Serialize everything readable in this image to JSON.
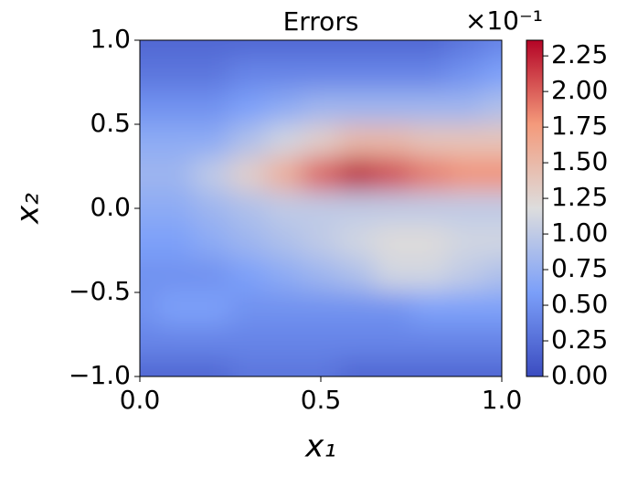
{
  "chart_data": {
    "type": "contour",
    "title": "Errors",
    "xlabel": "x₁",
    "ylabel": "x₂",
    "colorbar_offset_label": "×10⁻¹",
    "colormap": "coolwarm",
    "x": [
      0,
      0.1,
      0.2,
      0.3,
      0.4,
      0.5,
      0.6,
      0.7,
      0.8,
      0.9,
      1
    ],
    "y": [
      1,
      0.8,
      0.6,
      0.4,
      0.2,
      0,
      -0.2,
      -0.4,
      -0.6,
      -0.8,
      -1
    ],
    "z": [
      [
        0.2,
        0.2,
        0.2,
        0.2,
        0.2,
        0.2,
        0.2,
        0.2,
        0.2,
        0.3,
        0.4
      ],
      [
        0.3,
        0.3,
        0.3,
        0.4,
        0.4,
        0.4,
        0.4,
        0.4,
        0.4,
        0.5,
        0.6
      ],
      [
        0.5,
        0.5,
        0.5,
        0.6,
        0.7,
        0.8,
        0.8,
        0.8,
        0.8,
        0.8,
        0.9
      ],
      [
        0.7,
        0.7,
        0.7,
        0.9,
        1.1,
        1.3,
        1.5,
        1.5,
        1.4,
        1.4,
        1.4
      ],
      [
        0.8,
        0.8,
        1.0,
        1.3,
        1.6,
        2.0,
        2.3,
        2.1,
        1.9,
        1.8,
        1.8
      ],
      [
        0.7,
        0.7,
        0.8,
        0.9,
        1.0,
        1.0,
        1.0,
        1.0,
        1.0,
        1.0,
        1.0
      ],
      [
        0.6,
        0.6,
        0.7,
        0.8,
        0.9,
        1.0,
        1.1,
        1.2,
        1.2,
        1.1,
        1.1
      ],
      [
        0.5,
        0.5,
        0.5,
        0.6,
        0.7,
        0.8,
        0.9,
        1.1,
        1.1,
        1.0,
        0.9
      ],
      [
        0.5,
        0.6,
        0.6,
        0.5,
        0.5,
        0.5,
        0.5,
        0.5,
        0.6,
        0.6,
        0.6
      ],
      [
        0.4,
        0.4,
        0.4,
        0.4,
        0.4,
        0.4,
        0.4,
        0.4,
        0.4,
        0.4,
        0.4
      ],
      [
        0.2,
        0.2,
        0.2,
        0.3,
        0.3,
        0.3,
        0.2,
        0.2,
        0.2,
        0.2,
        0.2
      ]
    ],
    "xlim": [
      0,
      1
    ],
    "ylim": [
      -1,
      1
    ],
    "zlim": [
      0,
      2.36
    ],
    "xticks": [
      {
        "value": 0,
        "label": "0.0"
      },
      0.5,
      {
        "value": 1,
        "label": "1.0"
      }
    ],
    "yticks": [
      {
        "value": -1,
        "label": "−1.0"
      },
      {
        "value": -0.5,
        "label": "−0.5"
      },
      {
        "value": 0,
        "label": "0.0"
      },
      0.5,
      {
        "value": 1,
        "label": "1.0"
      }
    ],
    "zticks": [
      {
        "value": 0,
        "label": "0.00"
      },
      0.25,
      {
        "value": 0.5,
        "label": "0.50"
      },
      0.75,
      {
        "value": 1,
        "label": "1.00"
      },
      1.25,
      {
        "value": 1.5,
        "label": "1.50"
      },
      1.75,
      {
        "value": 2,
        "label": "2.00"
      },
      2.25
    ]
  }
}
